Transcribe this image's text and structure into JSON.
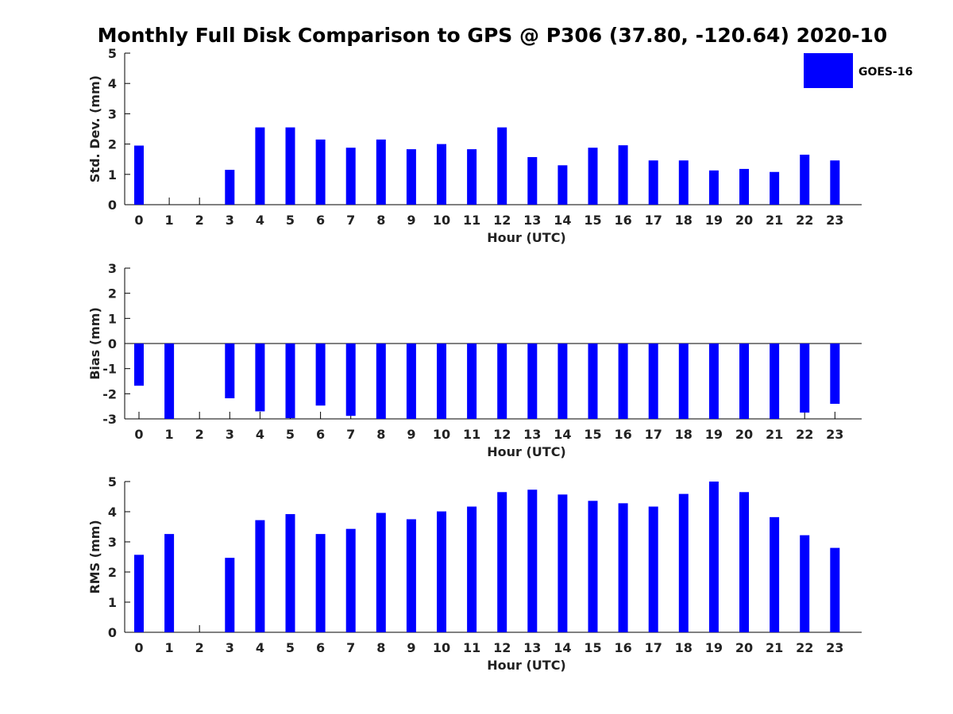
{
  "figure": {
    "title": "Monthly Full Disk Comparison to GPS @ P306 (37.80, -120.64) 2020-10",
    "legend": {
      "label": "GOES-16",
      "color": "#0000ff",
      "placement": "top-right"
    }
  },
  "chart_data": [
    {
      "type": "bar",
      "ylabel": "Std. Dev. (mm)",
      "xlabel": "Hour (UTC)",
      "ylim": [
        0,
        5
      ],
      "yticks": [
        0,
        1,
        2,
        3,
        4,
        5
      ],
      "categories": [
        "0",
        "1",
        "2",
        "3",
        "4",
        "5",
        "6",
        "7",
        "8",
        "9",
        "10",
        "11",
        "12",
        "13",
        "14",
        "15",
        "16",
        "17",
        "18",
        "19",
        "20",
        "21",
        "22",
        "23"
      ],
      "series": [
        {
          "name": "GOES-16",
          "values": [
            1.95,
            null,
            null,
            1.15,
            2.55,
            2.55,
            2.15,
            1.88,
            2.15,
            1.83,
            2.0,
            1.83,
            2.55,
            1.57,
            1.3,
            1.88,
            1.96,
            1.46,
            1.46,
            1.13,
            1.18,
            1.08,
            1.65,
            1.46
          ]
        }
      ]
    },
    {
      "type": "bar",
      "ylabel": "Bias (mm)",
      "xlabel": "Hour (UTC)",
      "ylim": [
        -3,
        3
      ],
      "yticks": [
        -3,
        -2,
        -1,
        0,
        1,
        2,
        3
      ],
      "categories": [
        "0",
        "1",
        "2",
        "3",
        "4",
        "5",
        "6",
        "7",
        "8",
        "9",
        "10",
        "11",
        "12",
        "13",
        "14",
        "15",
        "16",
        "17",
        "18",
        "19",
        "20",
        "21",
        "22",
        "23"
      ],
      "series": [
        {
          "name": "GOES-16",
          "values": [
            -1.68,
            -3.0,
            null,
            -2.18,
            -2.7,
            -2.97,
            -2.47,
            -2.88,
            -3.0,
            -3.0,
            -3.0,
            -3.0,
            -3.0,
            -3.0,
            -3.0,
            -3.0,
            -3.0,
            -3.0,
            -3.0,
            -3.0,
            -3.0,
            -3.0,
            -2.75,
            -2.4
          ]
        }
      ]
    },
    {
      "type": "bar",
      "ylabel": "RMS (mm)",
      "xlabel": "Hour (UTC)",
      "ylim": [
        0,
        5
      ],
      "yticks": [
        0,
        1,
        2,
        3,
        4,
        5
      ],
      "categories": [
        "0",
        "1",
        "2",
        "3",
        "4",
        "5",
        "6",
        "7",
        "8",
        "9",
        "10",
        "11",
        "12",
        "13",
        "14",
        "15",
        "16",
        "17",
        "18",
        "19",
        "20",
        "21",
        "22",
        "23"
      ],
      "series": [
        {
          "name": "GOES-16",
          "values": [
            2.57,
            3.26,
            null,
            2.47,
            3.72,
            3.92,
            3.26,
            3.43,
            3.96,
            3.75,
            4.01,
            4.17,
            4.65,
            4.73,
            4.57,
            4.36,
            4.28,
            4.17,
            4.59,
            5.0,
            4.65,
            3.82,
            3.22,
            2.8
          ]
        }
      ]
    }
  ]
}
